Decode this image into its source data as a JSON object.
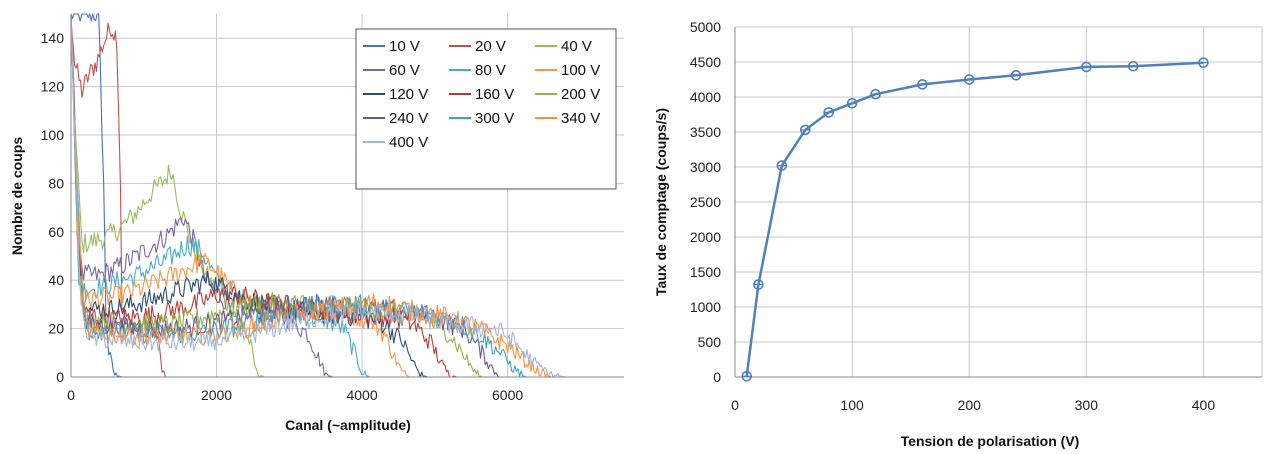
{
  "chart_data": [
    {
      "type": "line",
      "xlabel": "Canal (~amplitude)",
      "ylabel": "Nombre de coups",
      "xlim": [
        0,
        7600
      ],
      "ylim": [
        0,
        150
      ],
      "xticks": [
        0,
        2000,
        4000,
        6000
      ],
      "yticks": [
        0,
        20,
        40,
        60,
        80,
        100,
        120,
        140
      ],
      "grid": true,
      "legend": "top-right",
      "series": [
        {
          "name": "10 V",
          "color": "#4472C4",
          "points": [
            [
              0,
              150
            ],
            [
              80,
              150
            ],
            [
              150,
              150
            ],
            [
              300,
              150
            ],
            [
              380,
              150
            ],
            [
              450,
              80
            ],
            [
              480,
              25
            ],
            [
              520,
              10
            ],
            [
              600,
              1
            ],
            [
              700,
              0
            ],
            [
              7600,
              0
            ]
          ]
        },
        {
          "name": "20 V",
          "color": "#C0504D",
          "points": [
            [
              0,
              150
            ],
            [
              50,
              130
            ],
            [
              150,
              118
            ],
            [
              250,
              125
            ],
            [
              350,
              130
            ],
            [
              450,
              138
            ],
            [
              550,
              145
            ],
            [
              630,
              140
            ],
            [
              680,
              80
            ],
            [
              700,
              30
            ],
            [
              750,
              22
            ],
            [
              900,
              22
            ],
            [
              1100,
              22
            ],
            [
              1200,
              15
            ],
            [
              1250,
              3
            ],
            [
              1300,
              0
            ],
            [
              7600,
              0
            ]
          ]
        },
        {
          "name": "40 V",
          "color": "#9BBB59",
          "points": [
            [
              0,
              150
            ],
            [
              60,
              100
            ],
            [
              150,
              55
            ],
            [
              300,
              56
            ],
            [
              500,
              58
            ],
            [
              700,
              62
            ],
            [
              900,
              68
            ],
            [
              1100,
              76
            ],
            [
              1300,
              82
            ],
            [
              1380,
              86
            ],
            [
              1500,
              70
            ],
            [
              1700,
              52
            ],
            [
              1900,
              40
            ],
            [
              2100,
              32
            ],
            [
              2300,
              25
            ],
            [
              2450,
              15
            ],
            [
              2550,
              2
            ],
            [
              2650,
              0
            ],
            [
              7600,
              0
            ]
          ]
        },
        {
          "name": "60 V",
          "color": "#8064A2",
          "points": [
            [
              0,
              150
            ],
            [
              70,
              90
            ],
            [
              150,
              42
            ],
            [
              400,
              42
            ],
            [
              700,
              46
            ],
            [
              1000,
              52
            ],
            [
              1300,
              58
            ],
            [
              1550,
              66
            ],
            [
              1700,
              55
            ],
            [
              1850,
              40
            ],
            [
              2100,
              32
            ],
            [
              2400,
              28
            ],
            [
              2700,
              26
            ],
            [
              3000,
              24
            ],
            [
              3250,
              18
            ],
            [
              3400,
              8
            ],
            [
              3500,
              1
            ],
            [
              3600,
              0
            ],
            [
              7600,
              0
            ]
          ]
        },
        {
          "name": "80 V",
          "color": "#4BACC6",
          "points": [
            [
              0,
              150
            ],
            [
              80,
              80
            ],
            [
              160,
              36
            ],
            [
              500,
              38
            ],
            [
              900,
              42
            ],
            [
              1300,
              48
            ],
            [
              1600,
              55
            ],
            [
              1800,
              52
            ],
            [
              2000,
              40
            ],
            [
              2300,
              33
            ],
            [
              2700,
              28
            ],
            [
              3100,
              26
            ],
            [
              3500,
              24
            ],
            [
              3750,
              20
            ],
            [
              3900,
              10
            ],
            [
              4000,
              2
            ],
            [
              4100,
              0
            ],
            [
              7600,
              0
            ]
          ]
        },
        {
          "name": "100 V",
          "color": "#F79646",
          "points": [
            [
              0,
              150
            ],
            [
              90,
              70
            ],
            [
              170,
              32
            ],
            [
              600,
              33
            ],
            [
              1000,
              37
            ],
            [
              1400,
              42
            ],
            [
              1800,
              48
            ],
            [
              2000,
              44
            ],
            [
              2200,
              36
            ],
            [
              2600,
              30
            ],
            [
              3000,
              28
            ],
            [
              3400,
              27
            ],
            [
              3800,
              26
            ],
            [
              4100,
              24
            ],
            [
              4300,
              18
            ],
            [
              4450,
              8
            ],
            [
              4550,
              2
            ],
            [
              4650,
              0
            ],
            [
              7600,
              0
            ]
          ]
        },
        {
          "name": "120 V",
          "color": "#2C4D75",
          "points": [
            [
              0,
              150
            ],
            [
              90,
              60
            ],
            [
              180,
              28
            ],
            [
              600,
              28
            ],
            [
              1100,
              32
            ],
            [
              1500,
              36
            ],
            [
              1900,
              40
            ],
            [
              2100,
              37
            ],
            [
              2400,
              32
            ],
            [
              2800,
              29
            ],
            [
              3200,
              27
            ],
            [
              3600,
              26
            ],
            [
              4000,
              25
            ],
            [
              4300,
              22
            ],
            [
              4550,
              15
            ],
            [
              4700,
              6
            ],
            [
              4800,
              1
            ],
            [
              4900,
              0
            ],
            [
              7600,
              0
            ]
          ]
        },
        {
          "name": "160 V",
          "color": "#B83C35",
          "points": [
            [
              0,
              150
            ],
            [
              100,
              55
            ],
            [
              190,
              26
            ],
            [
              700,
              24
            ],
            [
              1200,
              26
            ],
            [
              1700,
              30
            ],
            [
              2100,
              35
            ],
            [
              2400,
              33
            ],
            [
              2800,
              30
            ],
            [
              3200,
              28
            ],
            [
              3600,
              27
            ],
            [
              4000,
              26
            ],
            [
              4400,
              25
            ],
            [
              4700,
              22
            ],
            [
              4950,
              14
            ],
            [
              5100,
              5
            ],
            [
              5200,
              1
            ],
            [
              5300,
              0
            ],
            [
              7600,
              0
            ]
          ]
        },
        {
          "name": "200 V",
          "color": "#94B24F",
          "points": [
            [
              0,
              150
            ],
            [
              100,
              50
            ],
            [
              200,
              24
            ],
            [
              800,
              22
            ],
            [
              1400,
              22
            ],
            [
              2000,
              26
            ],
            [
              2500,
              30
            ],
            [
              2900,
              31
            ],
            [
              3300,
              30
            ],
            [
              3700,
              29
            ],
            [
              4100,
              28
            ],
            [
              4500,
              26
            ],
            [
              4900,
              24
            ],
            [
              5200,
              18
            ],
            [
              5400,
              9
            ],
            [
              5550,
              2
            ],
            [
              5650,
              0
            ],
            [
              7600,
              0
            ]
          ]
        },
        {
          "name": "240 V",
          "color": "#6E5691",
          "points": [
            [
              0,
              150
            ],
            [
              110,
              45
            ],
            [
              210,
              22
            ],
            [
              900,
              20
            ],
            [
              1500,
              20
            ],
            [
              2100,
              23
            ],
            [
              2600,
              27
            ],
            [
              3000,
              30
            ],
            [
              3400,
              30
            ],
            [
              3800,
              29
            ],
            [
              4200,
              28
            ],
            [
              4600,
              27
            ],
            [
              5000,
              25
            ],
            [
              5400,
              20
            ],
            [
              5650,
              10
            ],
            [
              5800,
              3
            ],
            [
              5900,
              0
            ],
            [
              7600,
              0
            ]
          ]
        },
        {
          "name": "300 V",
          "color": "#34A4C0",
          "points": [
            [
              0,
              150
            ],
            [
              110,
              40
            ],
            [
              220,
              20
            ],
            [
              1000,
              18
            ],
            [
              1700,
              18
            ],
            [
              2300,
              21
            ],
            [
              2800,
              26
            ],
            [
              3300,
              29
            ],
            [
              3800,
              30
            ],
            [
              4200,
              29
            ],
            [
              4700,
              27
            ],
            [
              5200,
              24
            ],
            [
              5600,
              18
            ],
            [
              5900,
              10
            ],
            [
              6100,
              3
            ],
            [
              6250,
              0
            ],
            [
              7600,
              0
            ]
          ]
        },
        {
          "name": "340 V",
          "color": "#F6903B",
          "points": [
            [
              0,
              150
            ],
            [
              120,
              38
            ],
            [
              230,
              18
            ],
            [
              1000,
              17
            ],
            [
              1800,
              17
            ],
            [
              2400,
              20
            ],
            [
              2900,
              25
            ],
            [
              3400,
              28
            ],
            [
              3900,
              29
            ],
            [
              4200,
              31
            ],
            [
              4600,
              28
            ],
            [
              5100,
              25
            ],
            [
              5600,
              20
            ],
            [
              6000,
              13
            ],
            [
              6300,
              5
            ],
            [
              6500,
              1
            ],
            [
              6600,
              0
            ],
            [
              7600,
              0
            ]
          ]
        },
        {
          "name": "400 V",
          "color": "#A5B5D8",
          "points": [
            [
              0,
              150
            ],
            [
              120,
              35
            ],
            [
              240,
              16
            ],
            [
              1000,
              14
            ],
            [
              1800,
              14
            ],
            [
              2400,
              17
            ],
            [
              3000,
              22
            ],
            [
              3600,
              26
            ],
            [
              4200,
              27
            ],
            [
              4800,
              25
            ],
            [
              5200,
              22
            ],
            [
              5500,
              21
            ],
            [
              5800,
              20
            ],
            [
              6000,
              17
            ],
            [
              6200,
              11
            ],
            [
              6400,
              5
            ],
            [
              6600,
              1
            ],
            [
              6800,
              0
            ],
            [
              7600,
              0
            ]
          ]
        }
      ]
    },
    {
      "type": "line",
      "xlabel": "Tension de polarisation (V)",
      "ylabel": "Taux de comptage (coups/s)",
      "xlim": [
        0,
        450
      ],
      "ylim": [
        0,
        5000
      ],
      "xticks": [
        0,
        100,
        200,
        300,
        400
      ],
      "yticks": [
        0,
        500,
        1000,
        1500,
        2000,
        2500,
        3000,
        3500,
        4000,
        4500,
        5000
      ],
      "grid": true,
      "series": [
        {
          "color": "#4F81BD",
          "x": [
            10,
            20,
            40,
            60,
            80,
            100,
            120,
            160,
            200,
            240,
            300,
            340,
            400
          ],
          "y": [
            10,
            1320,
            3020,
            3530,
            3780,
            3910,
            4040,
            4180,
            4250,
            4310,
            4430,
            4440,
            4490
          ]
        }
      ]
    }
  ]
}
